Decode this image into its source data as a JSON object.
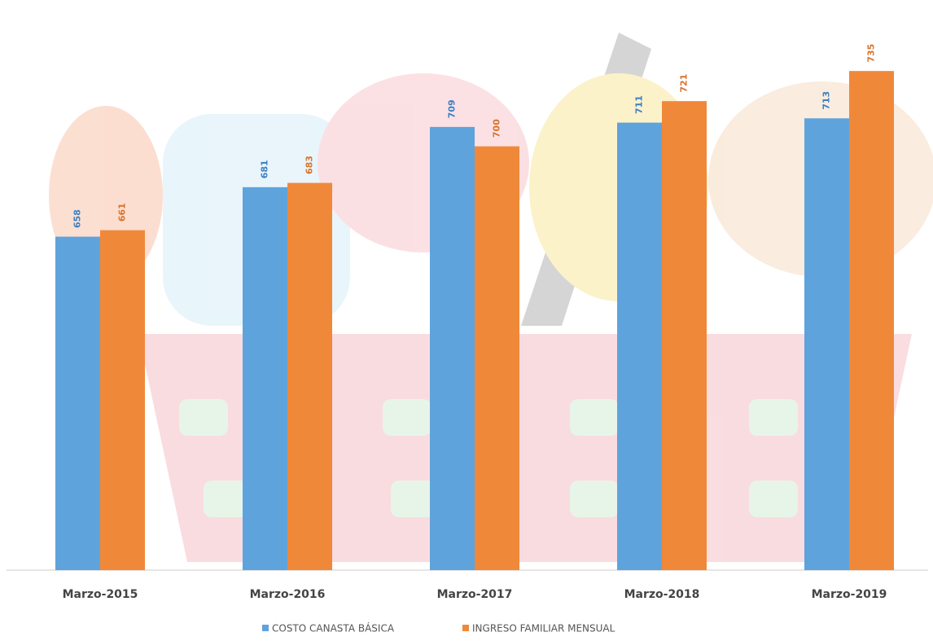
{
  "chart_data": {
    "type": "bar",
    "categories": [
      "Marzo-2015",
      "Marzo-2016",
      "Marzo-2017",
      "Marzo-2018",
      "Marzo-2019"
    ],
    "series": [
      {
        "name": "COSTO CANASTA BÁSICA",
        "color": "#5fa3dc",
        "values": [
          658,
          681,
          709,
          711,
          713
        ]
      },
      {
        "name": "INGRESO FAMILIAR MENSUAL",
        "color": "#f0883a",
        "values": [
          661,
          683,
          700,
          721,
          735
        ]
      }
    ],
    "ylim": [
      503,
      768
    ]
  }
}
